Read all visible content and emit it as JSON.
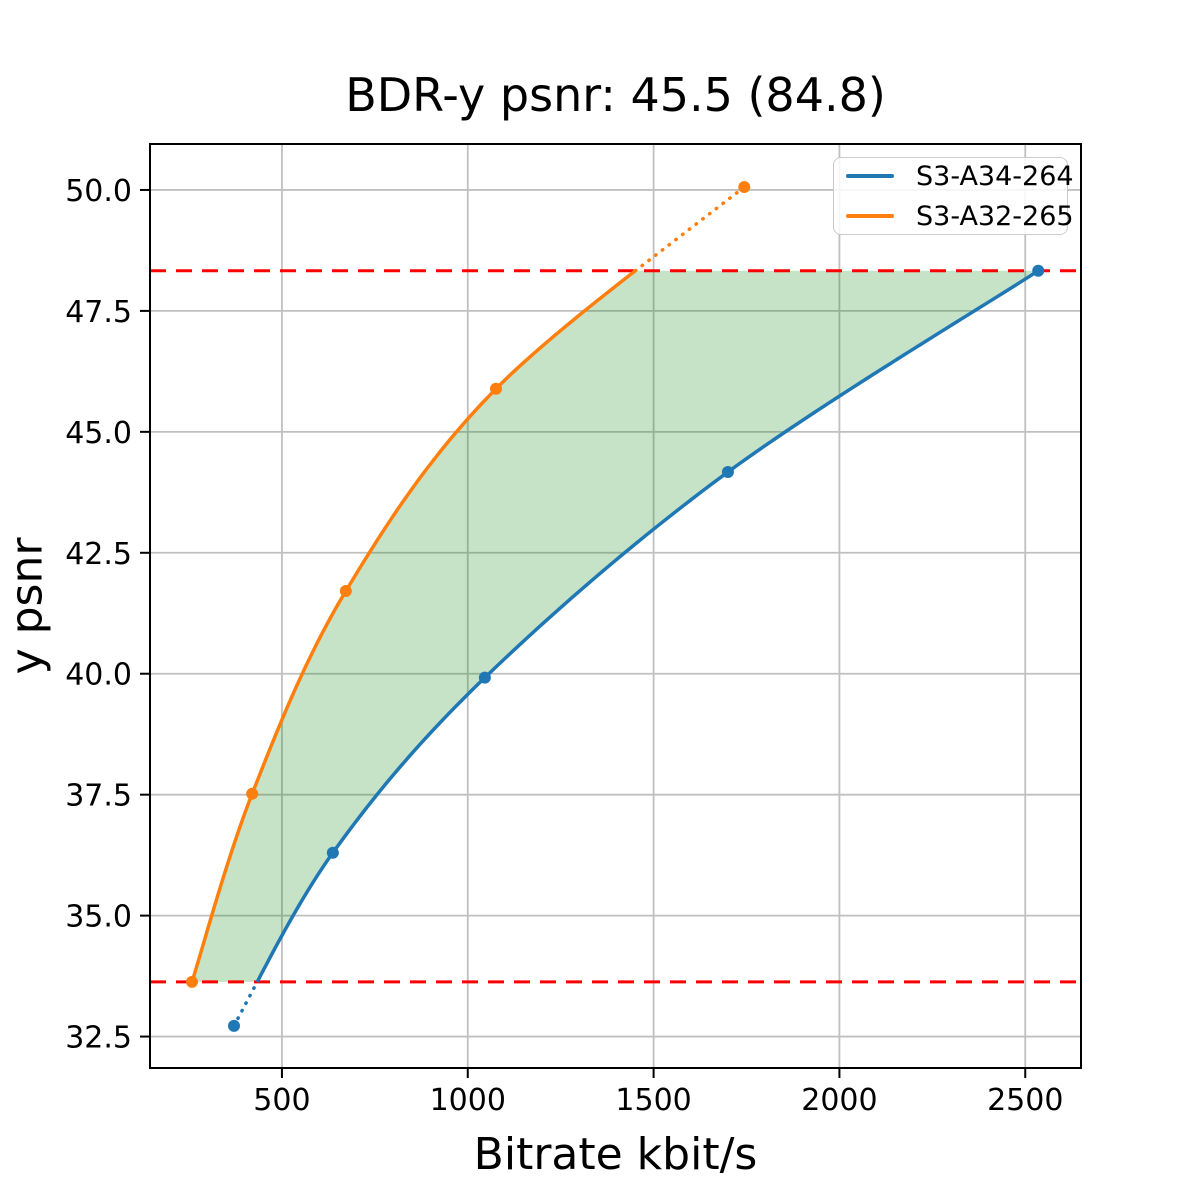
{
  "chart_data": {
    "type": "line",
    "title": "BDR-y psnr: 45.5 (84.8)",
    "xlabel": "Bitrate kbit/s",
    "ylabel": "y psnr",
    "xlim": [
      145,
      2650
    ],
    "ylim": [
      31.85,
      50.95
    ],
    "grid": true,
    "legend_position": "upper right",
    "xticks": [
      {
        "value": 500,
        "label": "500"
      },
      {
        "value": 1000,
        "label": "1000"
      },
      {
        "value": 1500,
        "label": "1500"
      },
      {
        "value": 2000,
        "label": "2000"
      },
      {
        "value": 2500,
        "label": "2500"
      }
    ],
    "yticks": [
      {
        "value": 32.5,
        "label": "32.5"
      },
      {
        "value": 35.0,
        "label": "35.0"
      },
      {
        "value": 37.5,
        "label": "37.5"
      },
      {
        "value": 40.0,
        "label": "40.0"
      },
      {
        "value": 42.5,
        "label": "42.5"
      },
      {
        "value": 45.0,
        "label": "45.0"
      },
      {
        "value": 47.5,
        "label": "47.5"
      },
      {
        "value": 50.0,
        "label": "50.0"
      }
    ],
    "series": [
      {
        "name": "S3-A34-264",
        "color": "#1f77b4",
        "points": [
          [
            371,
            32.72
          ],
          [
            637,
            36.3
          ],
          [
            1046,
            39.92
          ],
          [
            1700,
            44.17
          ],
          [
            2535,
            48.33
          ]
        ]
      },
      {
        "name": "S3-A32-265",
        "color": "#ff7f0e",
        "points": [
          [
            258,
            33.63
          ],
          [
            420,
            37.52
          ],
          [
            672,
            41.71
          ],
          [
            1076,
            45.89
          ],
          [
            1744,
            50.06
          ]
        ]
      }
    ],
    "overlap_hlines": {
      "color": "#ff0000",
      "style": "dashed",
      "psnr_max": 48.33,
      "psnr_min": 33.63
    },
    "shaded_region": {
      "color": "#008000",
      "alpha": 0.22,
      "description": "area between the two rate-distortion curves bounded by the red dashed overlap lines"
    }
  }
}
